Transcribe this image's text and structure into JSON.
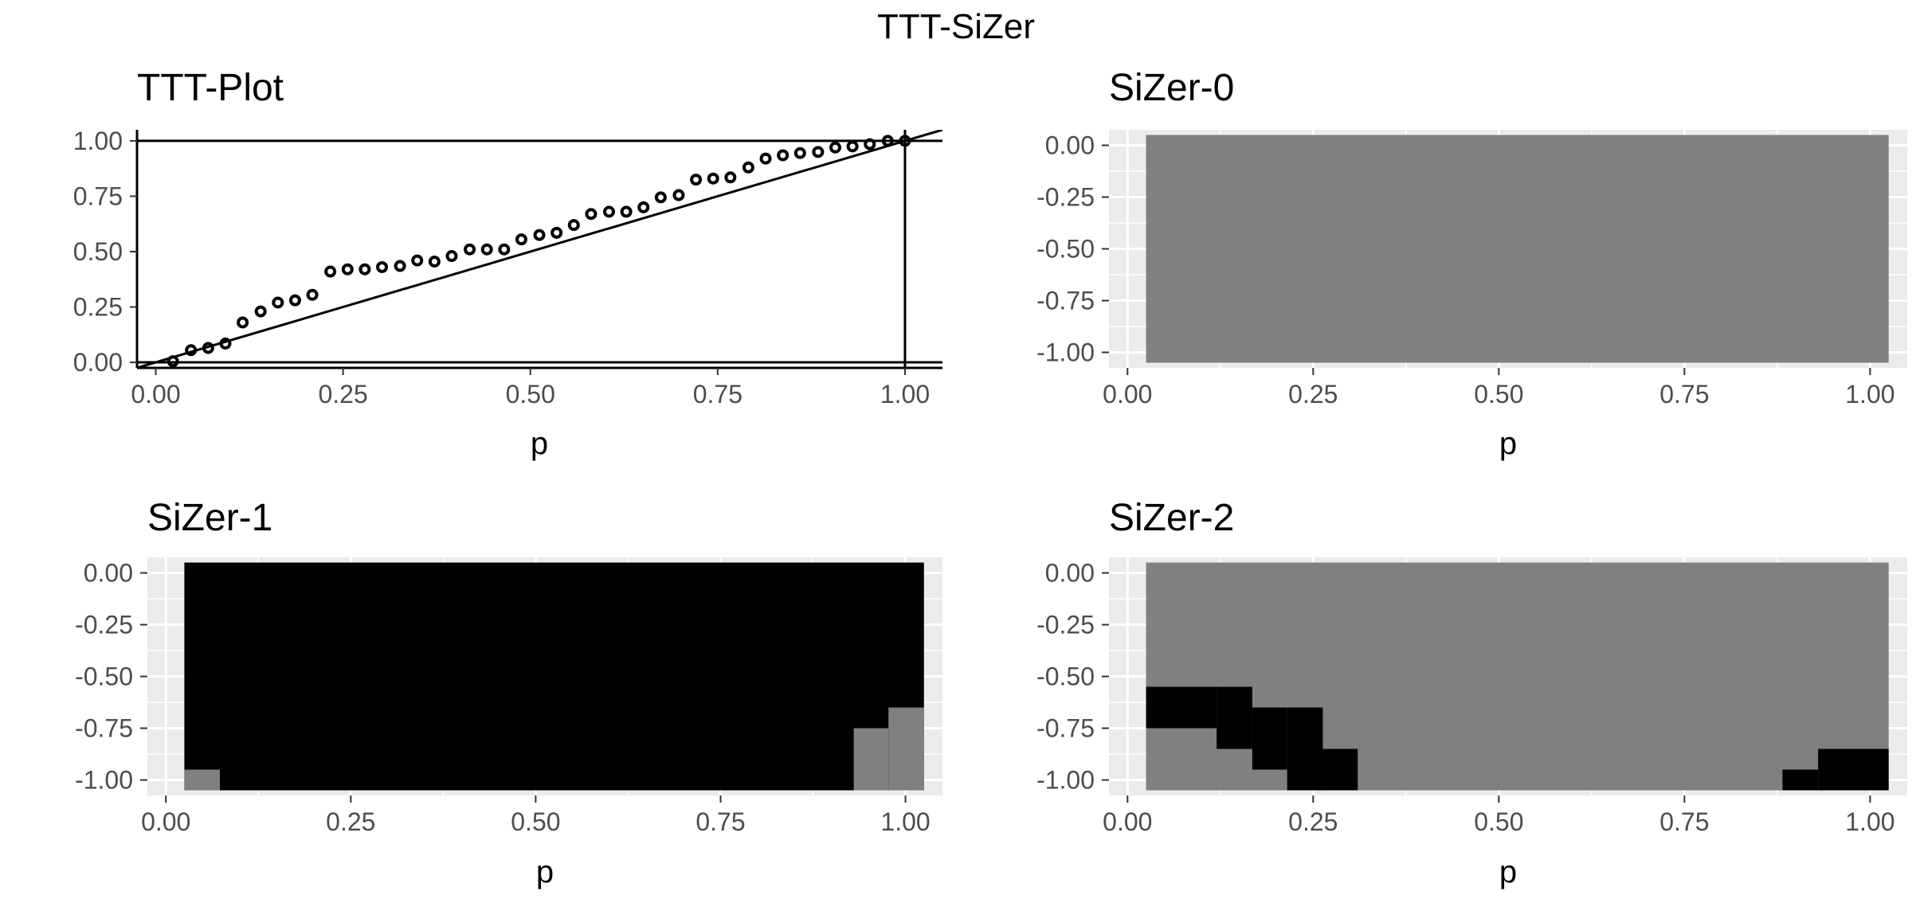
{
  "title": "TTT-SiZer",
  "chart_data": [
    {
      "id": "ttt",
      "type": "scatter",
      "title": "TTT-Plot",
      "xlabel": "p",
      "ylabel": "",
      "xlim": [
        -0.025,
        1.05
      ],
      "ylim": [
        -0.025,
        1.05
      ],
      "xticks": [
        0,
        0.25,
        0.5,
        0.75,
        1
      ],
      "xtick_labels": [
        "0.00",
        "0.25",
        "0.50",
        "0.75",
        "1.00"
      ],
      "yticks": [
        0,
        0.25,
        0.5,
        0.75,
        1
      ],
      "ytick_labels": [
        "0.00",
        "0.25",
        "0.50",
        "0.75",
        "1.00"
      ],
      "grid": false,
      "reference_lines": [
        {
          "kind": "hline",
          "y": 0
        },
        {
          "kind": "hline",
          "y": 1
        },
        {
          "kind": "vline",
          "x": 1
        },
        {
          "kind": "diagonal",
          "slope": 1,
          "intercept": 0
        }
      ],
      "points": [
        [
          0.023,
          0.005
        ],
        [
          0.047,
          0.055
        ],
        [
          0.07,
          0.065
        ],
        [
          0.093,
          0.085
        ],
        [
          0.116,
          0.18
        ],
        [
          0.14,
          0.23
        ],
        [
          0.163,
          0.27
        ],
        [
          0.186,
          0.28
        ],
        [
          0.209,
          0.305
        ],
        [
          0.233,
          0.41
        ],
        [
          0.256,
          0.42
        ],
        [
          0.279,
          0.42
        ],
        [
          0.302,
          0.43
        ],
        [
          0.326,
          0.435
        ],
        [
          0.349,
          0.46
        ],
        [
          0.372,
          0.455
        ],
        [
          0.395,
          0.48
        ],
        [
          0.419,
          0.51
        ],
        [
          0.442,
          0.51
        ],
        [
          0.465,
          0.51
        ],
        [
          0.488,
          0.555
        ],
        [
          0.512,
          0.575
        ],
        [
          0.535,
          0.585
        ],
        [
          0.558,
          0.62
        ],
        [
          0.581,
          0.67
        ],
        [
          0.605,
          0.68
        ],
        [
          0.628,
          0.68
        ],
        [
          0.651,
          0.7
        ],
        [
          0.674,
          0.745
        ],
        [
          0.698,
          0.755
        ],
        [
          0.721,
          0.825
        ],
        [
          0.744,
          0.83
        ],
        [
          0.767,
          0.835
        ],
        [
          0.791,
          0.88
        ],
        [
          0.814,
          0.92
        ],
        [
          0.837,
          0.935
        ],
        [
          0.86,
          0.945
        ],
        [
          0.884,
          0.95
        ],
        [
          0.907,
          0.97
        ],
        [
          0.93,
          0.975
        ],
        [
          0.953,
          0.985
        ],
        [
          0.977,
          1.0
        ],
        [
          1.0,
          1.0
        ]
      ]
    },
    {
      "id": "sizer0",
      "type": "heatmap",
      "title": "SiZer-0",
      "xlabel": "p",
      "ylabel": "",
      "xlim": [
        -0.025,
        1.05
      ],
      "ylim": [
        -1.075,
        0.075
      ],
      "xticks": [
        0,
        0.25,
        0.5,
        0.75,
        1
      ],
      "xtick_labels": [
        "0.00",
        "0.25",
        "0.50",
        "0.75",
        "1.00"
      ],
      "yticks": [
        -1,
        -0.75,
        -0.5,
        -0.25,
        0
      ],
      "ytick_labels": [
        "-1.00",
        "-0.75",
        "-0.50",
        "-0.25",
        "0.00"
      ],
      "grid": true,
      "x_range": [
        0.025,
        1.025
      ],
      "y_range": [
        -1.05,
        0.05
      ],
      "background_color": "#808080",
      "cells": []
    },
    {
      "id": "sizer1",
      "type": "heatmap",
      "title": "SiZer-1",
      "xlabel": "p",
      "ylabel": "",
      "xlim": [
        -0.025,
        1.05
      ],
      "ylim": [
        -1.075,
        0.075
      ],
      "xticks": [
        0,
        0.25,
        0.5,
        0.75,
        1
      ],
      "xtick_labels": [
        "0.00",
        "0.25",
        "0.50",
        "0.75",
        "1.00"
      ],
      "yticks": [
        -1,
        -0.75,
        -0.5,
        -0.25,
        0
      ],
      "ytick_labels": [
        "-1.00",
        "-0.75",
        "-0.50",
        "-0.25",
        "0.00"
      ],
      "grid": true,
      "x_range": [
        0.025,
        1.025
      ],
      "y_range": [
        -1.05,
        0.05
      ],
      "background_color": "#000000",
      "cells": [
        {
          "x0": 0.025,
          "x1": 0.073,
          "y0": -1.05,
          "y1": -0.95,
          "color": "#808080"
        },
        {
          "x0": 0.93,
          "x1": 0.977,
          "y0": -1.05,
          "y1": -0.75,
          "color": "#808080"
        },
        {
          "x0": 0.977,
          "x1": 1.025,
          "y0": -1.05,
          "y1": -0.65,
          "color": "#808080"
        }
      ]
    },
    {
      "id": "sizer2",
      "type": "heatmap",
      "title": "SiZer-2",
      "xlabel": "p",
      "ylabel": "",
      "xlim": [
        -0.025,
        1.05
      ],
      "ylim": [
        -1.075,
        0.075
      ],
      "xticks": [
        0,
        0.25,
        0.5,
        0.75,
        1
      ],
      "xtick_labels": [
        "0.00",
        "0.25",
        "0.50",
        "0.75",
        "1.00"
      ],
      "yticks": [
        -1,
        -0.75,
        -0.5,
        -0.25,
        0
      ],
      "ytick_labels": [
        "-1.00",
        "-0.75",
        "-0.50",
        "-0.25",
        "0.00"
      ],
      "grid": true,
      "x_range": [
        0.025,
        1.025
      ],
      "y_range": [
        -1.05,
        0.05
      ],
      "background_color": "#808080",
      "cells": [
        {
          "x0": 0.025,
          "x1": 0.12,
          "y0": -0.75,
          "y1": -0.55,
          "color": "#000000"
        },
        {
          "x0": 0.12,
          "x1": 0.168,
          "y0": -0.85,
          "y1": -0.55,
          "color": "#000000"
        },
        {
          "x0": 0.168,
          "x1": 0.215,
          "y0": -0.95,
          "y1": -0.65,
          "color": "#000000"
        },
        {
          "x0": 0.215,
          "x1": 0.263,
          "y0": -1.05,
          "y1": -0.65,
          "color": "#000000"
        },
        {
          "x0": 0.263,
          "x1": 0.31,
          "y0": -1.05,
          "y1": -0.85,
          "color": "#000000"
        },
        {
          "x0": 0.882,
          "x1": 0.93,
          "y0": -1.05,
          "y1": -0.95,
          "color": "#000000"
        },
        {
          "x0": 0.93,
          "x1": 1.025,
          "y0": -1.05,
          "y1": -0.85,
          "color": "#000000"
        }
      ]
    }
  ]
}
